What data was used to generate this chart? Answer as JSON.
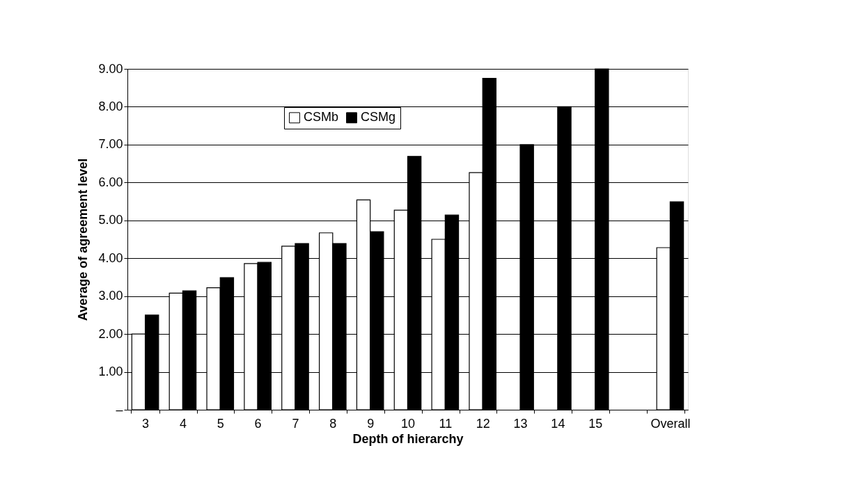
{
  "chart_data": {
    "type": "bar",
    "xlabel": "Depth of hierarchy",
    "ylabel": "Average of agreement level",
    "categories": [
      "3",
      "4",
      "5",
      "6",
      "7",
      "8",
      "9",
      "10",
      "11",
      "12",
      "13",
      "14",
      "15",
      null,
      "Overall"
    ],
    "series": [
      {
        "name": "CSMb",
        "color": "#ffffff",
        "values": [
          2.0,
          3.08,
          3.22,
          3.86,
          4.32,
          4.67,
          5.54,
          5.27,
          4.5,
          6.26,
          null,
          null,
          null,
          null,
          4.28
        ]
      },
      {
        "name": "CSMg",
        "color": "#000000",
        "values": [
          2.5,
          3.14,
          3.49,
          3.89,
          4.39,
          4.39,
          4.7,
          6.69,
          5.14,
          8.75,
          7.0,
          8.0,
          9.0,
          null,
          5.49
        ]
      }
    ],
    "ylim": [
      0,
      9
    ],
    "yticks": [
      {
        "value": 0,
        "label": "–"
      },
      {
        "value": 1,
        "label": "1.00"
      },
      {
        "value": 2,
        "label": "2.00"
      },
      {
        "value": 3,
        "label": "3.00"
      },
      {
        "value": 4,
        "label": "4.00"
      },
      {
        "value": 5,
        "label": "5.00"
      },
      {
        "value": 6,
        "label": "6.00"
      },
      {
        "value": 7,
        "label": "7.00"
      },
      {
        "value": 8,
        "label": "8.00"
      },
      {
        "value": 9,
        "label": "9.00"
      }
    ],
    "grid": "y",
    "legend": "top left"
  }
}
